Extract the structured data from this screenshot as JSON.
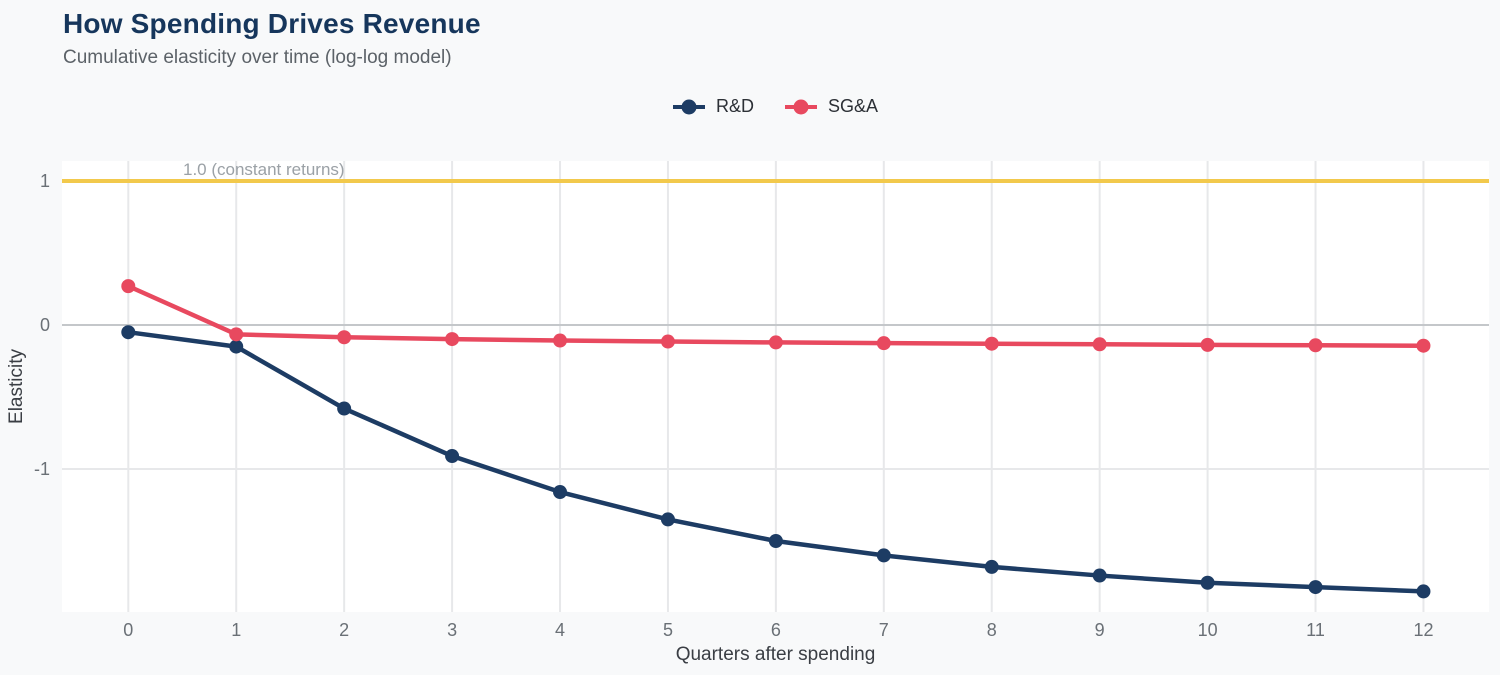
{
  "header": {
    "title": "How Spending Drives Revenue",
    "subtitle": "Cumulative elasticity over time (log-log model)"
  },
  "chart_data": {
    "type": "line",
    "x": [
      0,
      1,
      2,
      3,
      4,
      5,
      6,
      7,
      8,
      9,
      10,
      11,
      12
    ],
    "series": [
      {
        "name": "R&D",
        "color": "#1d3c64",
        "values": [
          -0.05,
          -0.15,
          -0.58,
          -0.91,
          -1.16,
          -1.35,
          -1.5,
          -1.6,
          -1.68,
          -1.74,
          -1.79,
          -1.82,
          -1.85
        ]
      },
      {
        "name": "SG&A",
        "color": "#e8495f",
        "values": [
          0.27,
          -0.065,
          -0.085,
          -0.098,
          -0.108,
          -0.115,
          -0.121,
          -0.126,
          -0.13,
          -0.134,
          -0.138,
          -0.141,
          -0.144
        ]
      }
    ],
    "reference_line": {
      "value": 1.0,
      "label": "1.0 (constant returns)",
      "color": "#f2c94c"
    },
    "xlabel": "Quarters after spending",
    "ylabel": "Elasticity",
    "xticks": [
      0,
      1,
      2,
      3,
      4,
      5,
      6,
      7,
      8,
      9,
      10,
      11,
      12
    ],
    "yticks": [
      1,
      0,
      -1
    ],
    "ylim": [
      -1.99,
      1.14
    ],
    "grid": true,
    "legend_position": "top-center",
    "style": {
      "background": "#f8f9fa",
      "panel": "#ffffff",
      "gridline": "#e7e8ea",
      "zero_line": "#c4c7ca",
      "tick_text": "#6a7076",
      "axis_title_text": "#3a3e44",
      "annotation_text": "#9ba1a6",
      "title_text": "#16365c",
      "subtitle_text": "#5c6268",
      "legend_text": "#2c3036"
    }
  }
}
